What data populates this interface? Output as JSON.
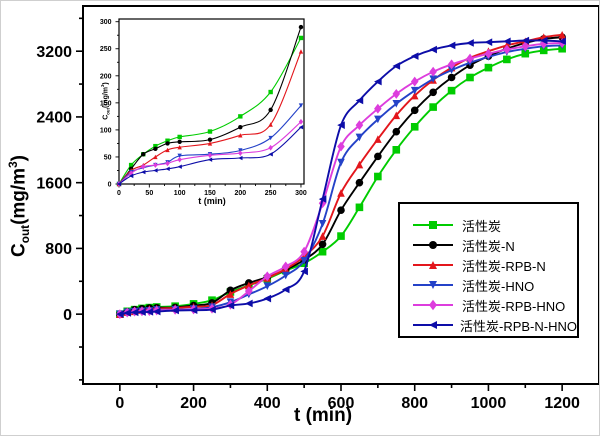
{
  "main_axes": {
    "x_label": "t (min)",
    "y_label_pre": "C",
    "y_label_sub": "out",
    "y_label_mid": "(mg/m",
    "y_label_sup": "3",
    "y_label_post": ")",
    "x_ticks": [
      0,
      200,
      400,
      600,
      800,
      1000,
      1200
    ],
    "y_ticks": [
      0,
      800,
      1600,
      2400,
      3200
    ],
    "x_range": [
      -100,
      1300
    ],
    "y_range": [
      -850,
      3750
    ],
    "x_minor_step": 100,
    "y_minor_step": 400
  },
  "inset_axes": {
    "x_label": "t (min)",
    "y_label_pre": "C",
    "y_label_sub": "out",
    "y_label_mid": "(mg/m",
    "y_label_sup": "3",
    "y_label_post": ")",
    "x_ticks": [
      0,
      50,
      100,
      150,
      200,
      250,
      300
    ],
    "y_ticks": [
      0,
      50,
      100,
      150,
      200,
      250,
      300
    ],
    "x_range": [
      0,
      305
    ],
    "y_range": [
      0,
      305
    ],
    "x_minor_step": 25,
    "y_minor_step": 25
  },
  "chart_data": {
    "type": "line",
    "title": "",
    "xlabel": "t (min)",
    "ylabel": "Cout(mg/m3)",
    "grid": false,
    "legend_position": "right-center",
    "main_xlim": [
      -100,
      1300
    ],
    "main_ylim": [
      -850,
      3750
    ],
    "inset_xlim": [
      0,
      305
    ],
    "inset_ylim": [
      0,
      305
    ],
    "inset_x_max": 300,
    "x": [
      0,
      20,
      40,
      60,
      80,
      100,
      150,
      200,
      250,
      300,
      350,
      400,
      450,
      500,
      550,
      600,
      650,
      700,
      750,
      800,
      850,
      900,
      950,
      1000,
      1050,
      1100,
      1150,
      1200
    ],
    "series": [
      {
        "name": "活性炭",
        "color": "#00cc00",
        "marker": "square",
        "values": [
          0,
          35,
          55,
          70,
          80,
          87,
          97,
          125,
          170,
          270,
          350,
          430,
          530,
          620,
          760,
          950,
          1300,
          1675,
          2000,
          2280,
          2520,
          2720,
          2880,
          3000,
          3100,
          3170,
          3210,
          3230
        ]
      },
      {
        "name": "活性炭-N",
        "color": "#000000",
        "marker": "circle",
        "values": [
          0,
          28,
          55,
          65,
          75,
          78,
          82,
          105,
          137,
          290,
          380,
          450,
          540,
          660,
          850,
          1265,
          1600,
          1920,
          2220,
          2480,
          2700,
          2880,
          3030,
          3140,
          3230,
          3300,
          3350,
          3370
        ]
      },
      {
        "name": "活性炭-RPB-N",
        "color": "#e3161c",
        "marker": "triangle-up",
        "values": [
          0,
          25,
          35,
          50,
          63,
          68,
          75,
          90,
          110,
          245,
          350,
          440,
          550,
          700,
          950,
          1475,
          1820,
          2130,
          2420,
          2660,
          2850,
          3000,
          3120,
          3200,
          3270,
          3320,
          3370,
          3400
        ]
      },
      {
        "name": "活性炭-HNO",
        "color": "#2442c8",
        "marker": "triangle-down",
        "values": [
          0,
          22,
          30,
          35,
          40,
          52,
          55,
          62,
          85,
          145,
          240,
          340,
          470,
          650,
          1100,
          1845,
          2150,
          2370,
          2560,
          2720,
          2860,
          2970,
          3060,
          3130,
          3190,
          3230,
          3260,
          3270
        ]
      },
      {
        "name": "活性炭-RPB-HNO",
        "color": "#dd3ddd",
        "marker": "diamond",
        "values": [
          0,
          20,
          32,
          35,
          38,
          45,
          53,
          57,
          67,
          115,
          280,
          460,
          580,
          760,
          1350,
          2040,
          2300,
          2500,
          2680,
          2830,
          2950,
          3040,
          3110,
          3170,
          3220,
          3260,
          3290,
          3300
        ]
      },
      {
        "name": "活性炭-RPB-N-HNO",
        "color": "#0d0da8",
        "marker": "triangle-left",
        "values": [
          0,
          15,
          22,
          25,
          28,
          32,
          45,
          48,
          55,
          105,
          130,
          190,
          300,
          520,
          1400,
          2300,
          2600,
          2830,
          3020,
          3140,
          3220,
          3270,
          3300,
          3310,
          3320,
          3330,
          3330,
          3320
        ]
      }
    ]
  }
}
